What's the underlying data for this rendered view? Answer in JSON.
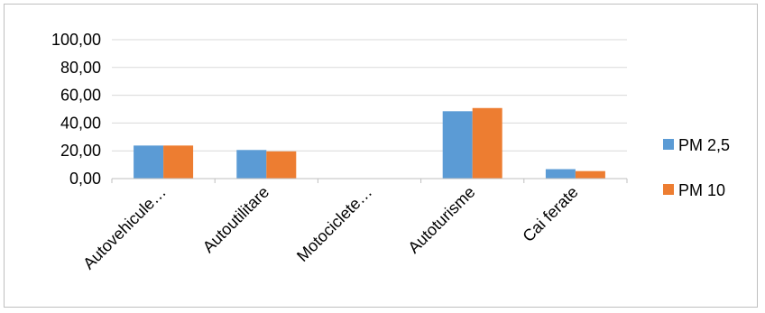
{
  "chart_data": {
    "type": "bar",
    "categories": [
      "Autovehicule…",
      "Autoutilitare",
      "Motociclete…",
      "Autoturisme",
      "Cai ferate"
    ],
    "series": [
      {
        "name": "PM 2,5",
        "color": "#5b9bd5",
        "values": [
          23.8,
          20.6,
          0.0,
          48.5,
          6.8
        ]
      },
      {
        "name": "PM 10",
        "color": "#ed7d31",
        "values": [
          23.8,
          19.6,
          0.0,
          50.8,
          5.4
        ]
      }
    ],
    "yticks": [
      "0,00",
      "20,00",
      "40,00",
      "60,00",
      "80,00",
      "100,00"
    ],
    "ylim": [
      0,
      100
    ],
    "grid": true,
    "legend_position": "right",
    "title": "",
    "xlabel": "",
    "ylabel": ""
  }
}
